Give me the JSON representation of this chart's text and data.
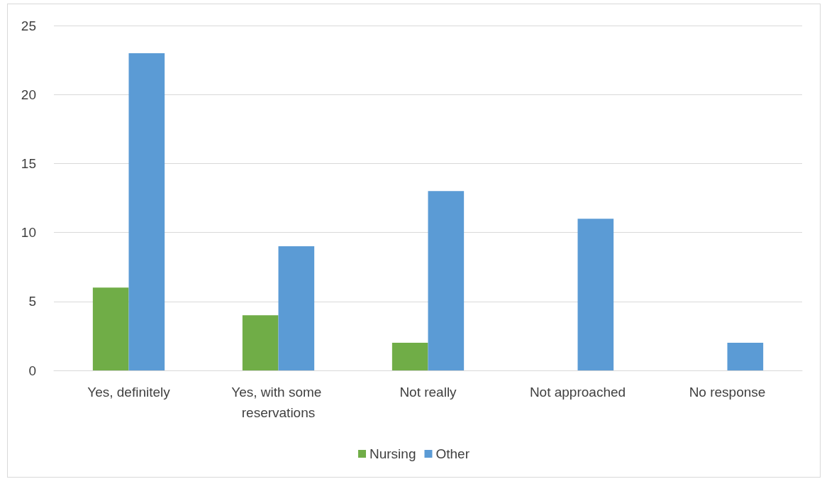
{
  "chart_data": {
    "type": "bar",
    "categories": [
      "Yes, definitely",
      "Yes, with some reservations",
      "Not really",
      "Not approached",
      "No response"
    ],
    "series": [
      {
        "name": "Nursing",
        "color": "#70ad47",
        "values": [
          6,
          4,
          2,
          0,
          0
        ]
      },
      {
        "name": "Other",
        "color": "#5b9bd5",
        "values": [
          23,
          9,
          13,
          11,
          2
        ]
      }
    ],
    "ylim": [
      0,
      25
    ],
    "yticks": [
      0,
      5,
      10,
      15,
      20,
      25
    ],
    "grid": "y",
    "legend": "bottom"
  }
}
